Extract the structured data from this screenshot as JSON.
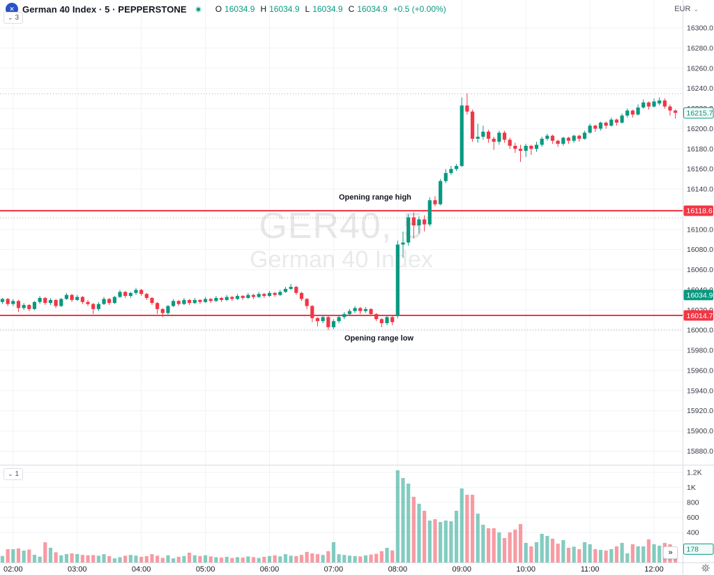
{
  "header": {
    "symbol_title": "German 40 Index · 5 · PEPPERSTONE",
    "ohlc": {
      "o_label": "O",
      "o": "16034.9",
      "h_label": "H",
      "h": "16034.9",
      "l_label": "L",
      "l": "16034.9",
      "c_label": "C",
      "c": "16034.9",
      "change": "+0.5 (+0.00%)"
    },
    "objects_toggle_count": "3"
  },
  "volume_pane": {
    "toggle_count": "1"
  },
  "top_right": {
    "currency": "EUR"
  },
  "icons": {
    "chevron_down": "⌄",
    "double_chevron_right": "»",
    "logo_glyph": "✕"
  },
  "annotations": {
    "high": "Opening range high",
    "low": "Opening range low"
  },
  "watermark": {
    "line1": "GER40, 5",
    "line2": "German 40 Index"
  },
  "colors": {
    "up": "#089981",
    "down": "#f23645",
    "vol_up": "rgba(8,153,129,0.5)",
    "vol_down": "rgba(242,54,69,0.5)",
    "range_line": "#f23645",
    "grid": "#f0f2f8",
    "dotted": "#9598a1",
    "axis_border": "#d8dbe2",
    "axis_text": "#363a45",
    "time_text": "#16181f"
  },
  "range_lines": [
    {
      "name": "opening-range-high",
      "price": 16118.6,
      "label": "16118.6"
    },
    {
      "name": "opening-range-low",
      "price": 16014.7,
      "label": "16014.7"
    }
  ],
  "dotted_levels": [
    16234.6,
    16111.5,
    16000.2
  ],
  "price_marks": [
    {
      "label": "16215.7",
      "price": 16215.7,
      "style": "outline"
    },
    {
      "label": "16034.9",
      "price": 16034.9,
      "style": "solid-up"
    }
  ],
  "volume_mark": {
    "label": "178",
    "value": 178
  },
  "axes": {
    "price_ticks": [
      "16300.0",
      "16280.0",
      "16260.0",
      "16240.0",
      "16220.0",
      "16200.0",
      "16180.0",
      "16160.0",
      "16140.0",
      "16120.0",
      "16100.0",
      "16080.0",
      "16060.0",
      "16040.0",
      "16020.0",
      "16000.0",
      "15980.0",
      "15960.0",
      "15940.0",
      "15920.0",
      "15900.0",
      "15880.0"
    ],
    "volume_ticks": [
      {
        "label": "1.2K",
        "v": 1200
      },
      {
        "label": "1K",
        "v": 1000
      },
      {
        "label": "800",
        "v": 800
      },
      {
        "label": "600",
        "v": 600
      },
      {
        "label": "400",
        "v": 400
      }
    ],
    "time_ticks": [
      {
        "label": "02:00",
        "i": 2
      },
      {
        "label": "03:00",
        "i": 14
      },
      {
        "label": "04:00",
        "i": 26
      },
      {
        "label": "05:00",
        "i": 38
      },
      {
        "label": "06:00",
        "i": 50
      },
      {
        "label": "07:00",
        "i": 62
      },
      {
        "label": "08:00",
        "i": 74
      },
      {
        "label": "09:00",
        "i": 86
      },
      {
        "label": "10:00",
        "i": 98
      },
      {
        "label": "11:00",
        "i": 110
      },
      {
        "label": "12:00",
        "i": 122
      }
    ]
  },
  "chart_data": {
    "type": "candlestick",
    "title": "German 40 Index",
    "symbol": "GER40",
    "interval": "5",
    "currency": "EUR",
    "ylim": [
      15874,
      16328
    ],
    "volume_ylim": [
      0,
      1260
    ],
    "grid": true,
    "candles_format": [
      "time",
      "open",
      "high",
      "low",
      "close",
      "volume"
    ],
    "candles": [
      [
        "01:50",
        16028,
        16032,
        16026,
        16031,
        85
      ],
      [
        "01:55",
        16031,
        16032,
        16024,
        16026,
        177
      ],
      [
        "02:00",
        16026,
        16031,
        16024,
        16029,
        176
      ],
      [
        "02:05",
        16029,
        16030,
        16018,
        16022,
        186
      ],
      [
        "02:10",
        16022,
        16027,
        16020,
        16025,
        158
      ],
      [
        "02:15",
        16025,
        16026,
        16019,
        16021,
        172
      ],
      [
        "02:20",
        16021,
        16029,
        16020,
        16028,
        102
      ],
      [
        "02:25",
        16028,
        16034,
        16026,
        16032,
        77
      ],
      [
        "02:30",
        16032,
        16033,
        16025,
        16027,
        268
      ],
      [
        "02:35",
        16027,
        16032,
        16025,
        16030,
        195
      ],
      [
        "02:40",
        16030,
        16031,
        16022,
        16024,
        135
      ],
      [
        "02:45",
        16024,
        16032,
        16023,
        16031,
        95
      ],
      [
        "02:50",
        16031,
        16037,
        16030,
        16035,
        112
      ],
      [
        "02:55",
        16035,
        16036,
        16028,
        16030,
        120
      ],
      [
        "03:00",
        16030,
        16035,
        16029,
        16033,
        112
      ],
      [
        "03:05",
        16033,
        16034,
        16026,
        16028,
        100
      ],
      [
        "03:10",
        16028,
        16030,
        16024,
        16026,
        95
      ],
      [
        "03:15",
        16026,
        16027,
        16016,
        16021,
        98
      ],
      [
        "03:20",
        16021,
        16028,
        16019,
        16026,
        90
      ],
      [
        "03:25",
        16026,
        16033,
        16025,
        16031,
        110
      ],
      [
        "03:30",
        16031,
        16032,
        16025,
        16027,
        85
      ],
      [
        "03:35",
        16027,
        16034,
        16026,
        16033,
        55
      ],
      [
        "03:40",
        16033,
        16040,
        16032,
        16038,
        70
      ],
      [
        "03:45",
        16038,
        16039,
        16032,
        16034,
        90
      ],
      [
        "03:50",
        16034,
        16038,
        16032,
        16037,
        100
      ],
      [
        "03:55",
        16037,
        16042,
        16035,
        16040,
        90
      ],
      [
        "04:00",
        16040,
        16041,
        16034,
        16036,
        75
      ],
      [
        "04:05",
        16036,
        16037,
        16030,
        16032,
        85
      ],
      [
        "04:10",
        16032,
        16033,
        16025,
        16027,
        110
      ],
      [
        "04:15",
        16027,
        16028,
        16016,
        16021,
        90
      ],
      [
        "04:20",
        16021,
        16022,
        16013,
        16017,
        60
      ],
      [
        "04:25",
        16017,
        16025,
        16015,
        16024,
        95
      ],
      [
        "04:30",
        16024,
        16031,
        16023,
        16029,
        55
      ],
      [
        "04:35",
        16029,
        16030,
        16024,
        16026,
        75
      ],
      [
        "04:40",
        16026,
        16032,
        16025,
        16030,
        85
      ],
      [
        "04:45",
        16030,
        16031,
        16025,
        16027,
        130
      ],
      [
        "04:50",
        16027,
        16032,
        16026,
        16030,
        95
      ],
      [
        "04:55",
        16030,
        16031,
        16026,
        16028,
        85
      ],
      [
        "05:00",
        16028,
        16033,
        16027,
        16031,
        95
      ],
      [
        "05:05",
        16031,
        16032,
        16027,
        16029,
        80
      ],
      [
        "05:10",
        16029,
        16034,
        16028,
        16032,
        70
      ],
      [
        "05:15",
        16032,
        16033,
        16028,
        16030,
        65
      ],
      [
        "05:20",
        16030,
        16035,
        16029,
        16033,
        75
      ],
      [
        "05:25",
        16033,
        16034,
        16029,
        16031,
        60
      ],
      [
        "05:30",
        16031,
        16036,
        16030,
        16034,
        70
      ],
      [
        "05:35",
        16034,
        16035,
        16030,
        16032,
        65
      ],
      [
        "05:40",
        16032,
        16037,
        16031,
        16035,
        80
      ],
      [
        "05:45",
        16035,
        16036,
        16031,
        16033,
        70
      ],
      [
        "05:50",
        16033,
        16038,
        16032,
        16036,
        60
      ],
      [
        "05:55",
        16036,
        16037,
        16032,
        16034,
        75
      ],
      [
        "06:00",
        16034,
        16039,
        16033,
        16037,
        85
      ],
      [
        "06:05",
        16037,
        16038,
        16033,
        16035,
        95
      ],
      [
        "06:10",
        16035,
        16040,
        16034,
        16038,
        80
      ],
      [
        "06:15",
        16038,
        16043,
        16037,
        16041,
        110
      ],
      [
        "06:20",
        16041,
        16046,
        16040,
        16043,
        90
      ],
      [
        "06:25",
        16043,
        16044,
        16035,
        16037,
        85
      ],
      [
        "06:30",
        16037,
        16038,
        16029,
        16031,
        100
      ],
      [
        "06:35",
        16031,
        16032,
        16021,
        16024,
        140
      ],
      [
        "06:40",
        16024,
        16025,
        16008,
        16012,
        120
      ],
      [
        "06:45",
        16012,
        16013,
        16004,
        16009,
        110
      ],
      [
        "06:50",
        16009,
        16015,
        16007,
        16013,
        100
      ],
      [
        "06:55",
        16013,
        16014,
        16000.2,
        16003,
        150
      ],
      [
        "07:00",
        16003,
        16011,
        16001,
        16009,
        270
      ],
      [
        "07:05",
        16009,
        16015,
        16007,
        16013,
        110
      ],
      [
        "07:10",
        16013,
        16018,
        16011,
        16016,
        100
      ],
      [
        "07:15",
        16016,
        16021,
        16014,
        16019,
        90
      ],
      [
        "07:20",
        16019,
        16024,
        16017,
        16022,
        85
      ],
      [
        "07:25",
        16022,
        16023,
        16016,
        16019,
        80
      ],
      [
        "07:30",
        16019,
        16023,
        16017,
        16021,
        95
      ],
      [
        "07:35",
        16021,
        16022,
        16014,
        16016,
        105
      ],
      [
        "07:40",
        16016,
        16017,
        16009,
        16011,
        115
      ],
      [
        "07:45",
        16011,
        16012,
        16003,
        16007,
        150
      ],
      [
        "07:50",
        16007,
        16014,
        16005,
        16013,
        195
      ],
      [
        "07:55",
        16013,
        16014,
        16005,
        16008,
        160
      ],
      [
        "08:00",
        16014.7,
        16089,
        16012,
        16085,
        1227
      ],
      [
        "08:05",
        16085,
        16098,
        16072,
        16087,
        1124
      ],
      [
        "08:10",
        16087,
        16115,
        16084,
        16112,
        1050
      ],
      [
        "08:15",
        16112,
        16117,
        16091,
        16104,
        874
      ],
      [
        "08:20",
        16104,
        16113,
        16096,
        16110,
        781
      ],
      [
        "08:25",
        16110,
        16114,
        16098,
        16105,
        688
      ],
      [
        "08:30",
        16105,
        16132,
        16103,
        16129,
        558
      ],
      [
        "08:35",
        16129,
        16133,
        16123,
        16125,
        576
      ],
      [
        "08:40",
        16125,
        16150,
        16124,
        16148,
        539
      ],
      [
        "08:45",
        16148,
        16160,
        16146,
        16156,
        558
      ],
      [
        "08:50",
        16156,
        16163,
        16154,
        16160,
        548
      ],
      [
        "08:55",
        16160,
        16165,
        16158,
        16163,
        688
      ],
      [
        "09:00",
        16163,
        16231,
        16162,
        16223,
        985
      ],
      [
        "09:05",
        16223,
        16235,
        16214,
        16217,
        901
      ],
      [
        "09:10",
        16217,
        16219,
        16187,
        16190,
        901
      ],
      [
        "09:15",
        16190,
        16205,
        16186,
        16192,
        650
      ],
      [
        "09:20",
        16192,
        16203,
        16189,
        16197,
        502
      ],
      [
        "09:25",
        16197,
        16199,
        16186,
        16190,
        455
      ],
      [
        "09:30",
        16190,
        16192,
        16179,
        16187,
        455
      ],
      [
        "09:35",
        16187,
        16198,
        16184,
        16196,
        400
      ],
      [
        "09:40",
        16196,
        16198,
        16186,
        16189,
        325
      ],
      [
        "09:45",
        16189,
        16191,
        16180,
        16183,
        400
      ],
      [
        "09:50",
        16183,
        16186,
        16176,
        16180,
        437
      ],
      [
        "09:55",
        16180,
        16184,
        16167,
        16178,
        511
      ],
      [
        "10:00",
        16178,
        16185,
        16172,
        16183,
        260
      ],
      [
        "10:05",
        16183,
        16184,
        16174,
        16180,
        214
      ],
      [
        "10:10",
        16180,
        16187,
        16177,
        16184,
        270
      ],
      [
        "10:15",
        16184,
        16192,
        16182,
        16190,
        381
      ],
      [
        "10:20",
        16190,
        16195,
        16188,
        16193,
        353
      ],
      [
        "10:25",
        16193,
        16194,
        16185,
        16188,
        316
      ],
      [
        "10:30",
        16188,
        16189,
        16182,
        16185,
        251
      ],
      [
        "10:35",
        16185,
        16192,
        16183,
        16191,
        297
      ],
      [
        "10:40",
        16191,
        16192,
        16185,
        16188,
        195
      ],
      [
        "10:45",
        16188,
        16194,
        16186,
        16193,
        210
      ],
      [
        "10:50",
        16193,
        16194,
        16187,
        16190,
        177
      ],
      [
        "10:55",
        16190,
        16198,
        16189,
        16196,
        270
      ],
      [
        "11:00",
        16196,
        16205,
        16195,
        16203,
        242
      ],
      [
        "11:05",
        16203,
        16204,
        16197,
        16200,
        177
      ],
      [
        "11:10",
        16200,
        16207,
        16198,
        16206,
        167
      ],
      [
        "11:15",
        16206,
        16207,
        16200,
        16203,
        158
      ],
      [
        "11:20",
        16203,
        16211,
        16202,
        16209,
        177
      ],
      [
        "11:25",
        16209,
        16210,
        16203,
        16206,
        214
      ],
      [
        "11:30",
        16206,
        16215,
        16205,
        16213,
        260
      ],
      [
        "11:35",
        16213,
        16220,
        16211,
        16218,
        121
      ],
      [
        "11:40",
        16218,
        16219,
        16211,
        16214,
        242
      ],
      [
        "11:45",
        16214,
        16224,
        16213,
        16221,
        214
      ],
      [
        "11:50",
        16221,
        16229,
        16220,
        16226,
        214
      ],
      [
        "11:55",
        16226,
        16227,
        16219,
        16222,
        307
      ],
      [
        "12:00",
        16222,
        16230,
        16221,
        16227,
        242
      ],
      [
        "12:05",
        16225,
        16231,
        16223,
        16228,
        223
      ],
      [
        "12:10",
        16228,
        16230,
        16220,
        16222,
        260
      ],
      [
        "12:15",
        16222,
        16224,
        16213,
        16218,
        242
      ],
      [
        "12:20",
        16218,
        16219,
        16210,
        16215.7,
        178
      ]
    ]
  }
}
